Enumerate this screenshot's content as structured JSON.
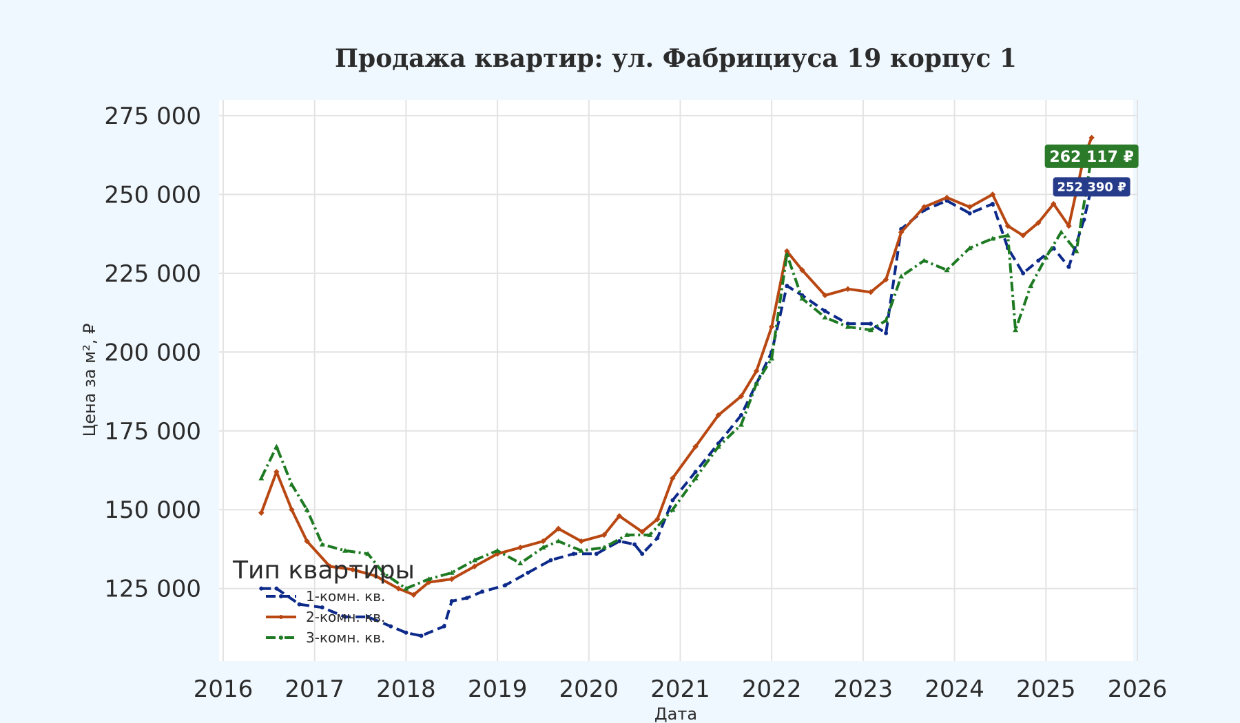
{
  "colors": {
    "background": "#f0f8ff",
    "plot_background": "#ffffff",
    "grid": "#e3e3e3",
    "text": "#2b2b2b"
  },
  "chart_data": {
    "type": "line",
    "title": "Продажа квартир: ул. Фабрициуса 19 корпус 1",
    "xlabel": "Дата",
    "ylabel": "Цена за м², ₽",
    "x_axis": "date",
    "xlim": [
      2016.0,
      2026.0
    ],
    "ylim": [
      102000,
      280000
    ],
    "x_ticks": [
      2016,
      2017,
      2018,
      2019,
      2020,
      2021,
      2022,
      2023,
      2024,
      2025,
      2026
    ],
    "x_tick_labels": [
      "2016",
      "2017",
      "2018",
      "2019",
      "2020",
      "2021",
      "2022",
      "2023",
      "2024",
      "2025",
      "2026"
    ],
    "y_ticks": [
      125000,
      150000,
      175000,
      200000,
      225000,
      250000,
      275000
    ],
    "y_tick_labels": [
      "125 000",
      "150 000",
      "175 000",
      "200 000",
      "225 000",
      "250 000",
      "275 000"
    ],
    "grid": true,
    "legend": {
      "title": "Тип квартиры",
      "placement": "lower-left"
    },
    "series": [
      {
        "name": "1-комн. кв.",
        "color": "#0d2a8a",
        "style": "dashed",
        "marker": "circle",
        "x": [
          "2016-06",
          "2016-08",
          "2016-11",
          "2017-02",
          "2017-05",
          "2017-08",
          "2017-11",
          "2018-01",
          "2018-03",
          "2018-06",
          "2018-07",
          "2018-09",
          "2018-11",
          "2019-02",
          "2019-05",
          "2019-08",
          "2019-11",
          "2020-02",
          "2020-05",
          "2020-07",
          "2020-08",
          "2020-10",
          "2020-12",
          "2021-03",
          "2021-06",
          "2021-09",
          "2021-11",
          "2022-01",
          "2022-03",
          "2022-05",
          "2022-08",
          "2022-11",
          "2023-02",
          "2023-04",
          "2023-06",
          "2023-09",
          "2023-12",
          "2024-03",
          "2024-06",
          "2024-08",
          "2024-10",
          "2024-12",
          "2025-02",
          "2025-04",
          "2025-06",
          "2025-07"
        ],
        "values": [
          125000,
          125000,
          120000,
          119000,
          116000,
          116000,
          113000,
          111000,
          110000,
          113000,
          121000,
          122000,
          124000,
          126000,
          130000,
          134000,
          136000,
          136000,
          140000,
          139000,
          136000,
          141000,
          153000,
          162000,
          171000,
          180000,
          190000,
          200000,
          221000,
          218000,
          213000,
          209000,
          209000,
          206000,
          239000,
          245000,
          248000,
          244000,
          247000,
          233000,
          225000,
          229000,
          233000,
          227000,
          242000,
          252390
        ]
      },
      {
        "name": "2-комн. кв.",
        "color": "#b84712",
        "style": "solid",
        "marker": "diamond",
        "x": [
          "2016-06",
          "2016-08",
          "2016-10",
          "2016-12",
          "2017-03",
          "2017-06",
          "2017-09",
          "2017-12",
          "2018-02",
          "2018-04",
          "2018-07",
          "2018-10",
          "2019-01",
          "2019-04",
          "2019-07",
          "2019-09",
          "2019-12",
          "2020-03",
          "2020-05",
          "2020-08",
          "2020-10",
          "2020-12",
          "2021-03",
          "2021-06",
          "2021-09",
          "2021-11",
          "2022-01",
          "2022-03",
          "2022-05",
          "2022-08",
          "2022-11",
          "2023-02",
          "2023-04",
          "2023-06",
          "2023-09",
          "2023-12",
          "2024-03",
          "2024-06",
          "2024-08",
          "2024-10",
          "2024-12",
          "2025-02",
          "2025-04",
          "2025-06",
          "2025-07"
        ],
        "values": [
          149000,
          162000,
          150000,
          140000,
          132000,
          131000,
          129000,
          125000,
          123000,
          127000,
          128000,
          132000,
          136000,
          138000,
          140000,
          144000,
          140000,
          142000,
          148000,
          143000,
          147000,
          160000,
          170000,
          180000,
          186000,
          194000,
          208000,
          232000,
          226000,
          218000,
          220000,
          219000,
          223000,
          238000,
          246000,
          249000,
          246000,
          250000,
          240000,
          237000,
          241000,
          247000,
          240000,
          262000,
          268000
        ]
      },
      {
        "name": "3-комн. кв.",
        "color": "#1e7a22",
        "style": "dashdot",
        "marker": "triangle",
        "x": [
          "2016-06",
          "2016-08",
          "2016-10",
          "2016-12",
          "2017-02",
          "2017-05",
          "2017-08",
          "2017-10",
          "2018-01",
          "2018-04",
          "2018-07",
          "2018-10",
          "2019-01",
          "2019-04",
          "2019-07",
          "2019-09",
          "2019-12",
          "2020-03",
          "2020-06",
          "2020-09",
          "2020-12",
          "2021-03",
          "2021-06",
          "2021-09",
          "2021-11",
          "2022-01",
          "2022-03",
          "2022-05",
          "2022-08",
          "2022-11",
          "2023-02",
          "2023-04",
          "2023-06",
          "2023-09",
          "2023-12",
          "2024-03",
          "2024-06",
          "2024-08",
          "2024-09",
          "2024-11",
          "2025-01",
          "2025-03",
          "2025-05",
          "2025-07"
        ],
        "values": [
          160000,
          170000,
          158000,
          150000,
          139000,
          137000,
          136000,
          130000,
          125000,
          128000,
          130000,
          134000,
          137000,
          133000,
          138000,
          140000,
          137000,
          138000,
          142000,
          142000,
          150000,
          160000,
          170000,
          177000,
          190000,
          198000,
          231000,
          217000,
          211000,
          208000,
          207000,
          210000,
          224000,
          229000,
          226000,
          233000,
          236000,
          237000,
          207000,
          221000,
          230000,
          238000,
          232000,
          262117
        ]
      }
    ],
    "annotations": [
      {
        "series": "3-комн. кв.",
        "text": "262 117 ₽",
        "x": "2025-07",
        "y": 262117,
        "color": "#2a7a2a"
      },
      {
        "series": "1-комн. кв.",
        "text": "252 390 ₽",
        "x": "2025-07",
        "y": 252390,
        "color": "#263c8a"
      }
    ]
  }
}
